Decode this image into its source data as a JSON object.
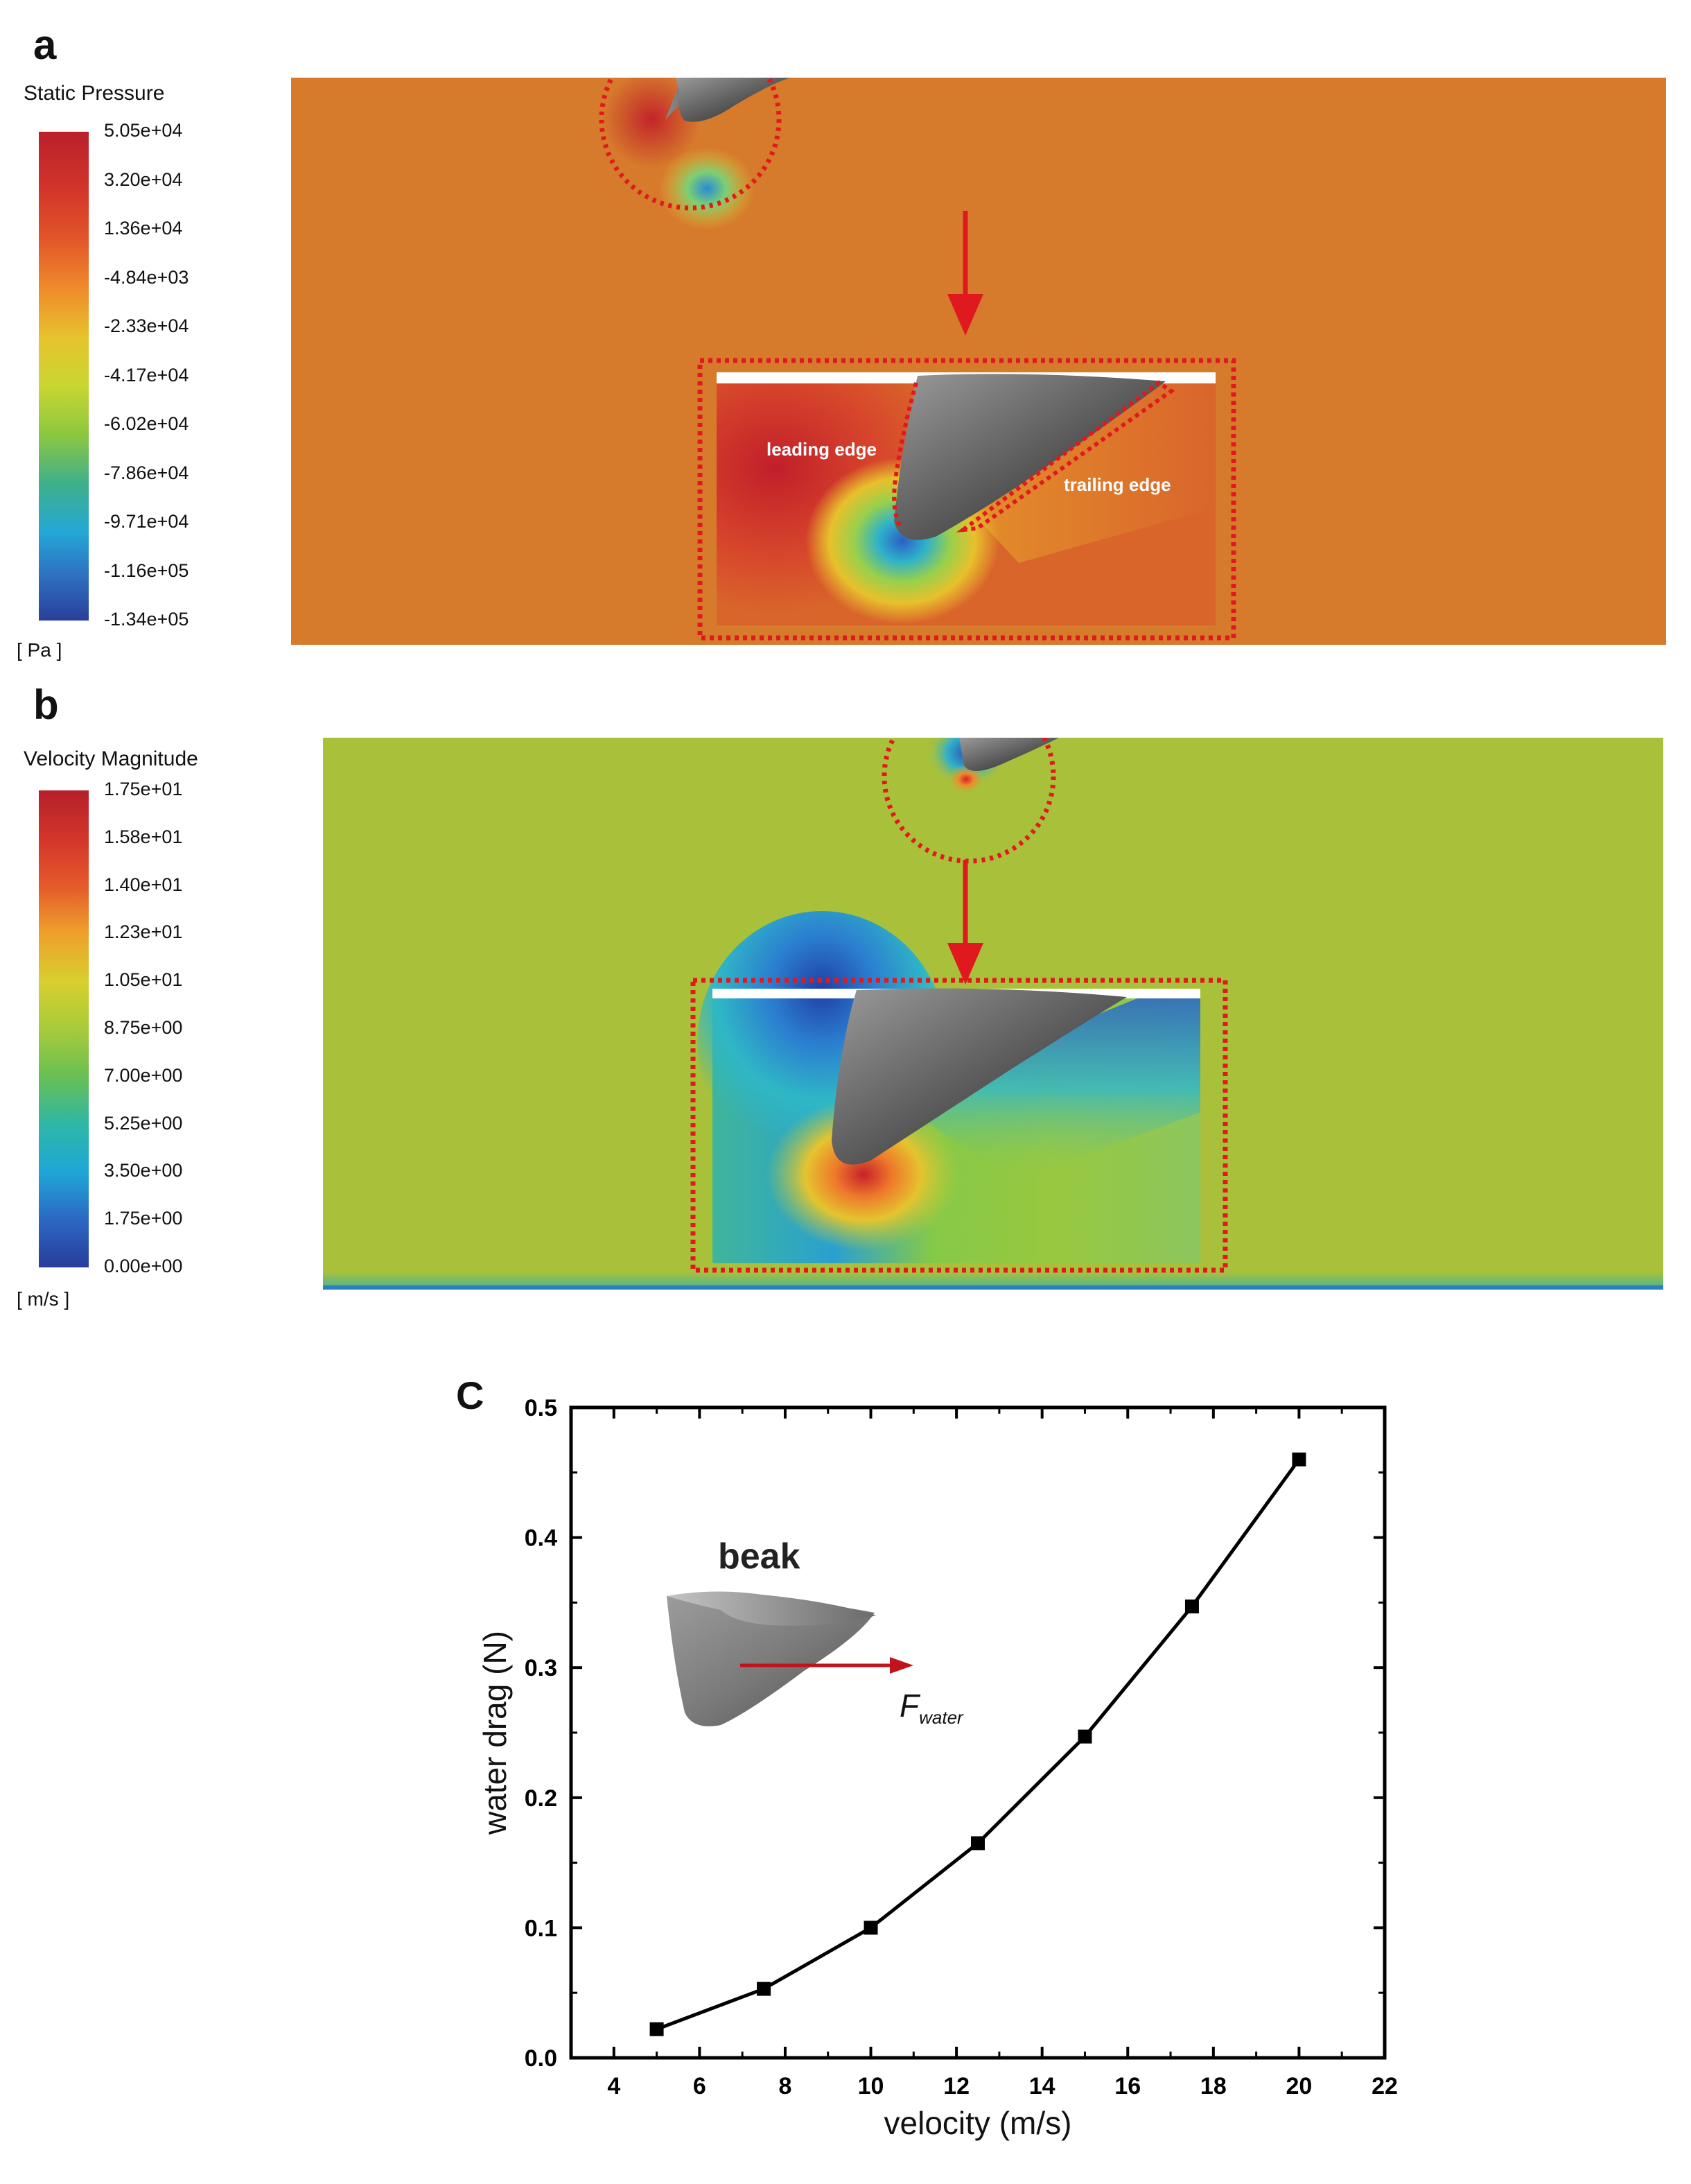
{
  "panel_a": {
    "label": "a",
    "colorbar_title": "Static Pressure",
    "colorbar_ticks": [
      "5.05e+04",
      "3.20e+04",
      "1.36e+04",
      "-4.84e+03",
      "-2.33e+04",
      "-4.17e+04",
      "-6.02e+04",
      "-7.86e+04",
      "-9.71e+04",
      "-1.16e+05",
      "-1.34e+05"
    ],
    "units": "[ Pa ]",
    "inset_labels": {
      "leading": "leading edge",
      "trailing": "trailing edge"
    },
    "field_color": "#d67a2c"
  },
  "panel_b": {
    "label": "b",
    "colorbar_title": "Velocity Magnitude",
    "colorbar_ticks": [
      "1.75e+01",
      "1.58e+01",
      "1.40e+01",
      "1.23e+01",
      "1.05e+01",
      "8.75e+00",
      "7.00e+00",
      "5.25e+00",
      "3.50e+00",
      "1.75e+00",
      "0.00e+00"
    ],
    "units": "[ m/s ]",
    "field_color": "#a9c13a"
  },
  "panel_c": {
    "label": "C",
    "inset_title": "beak",
    "force_label_main": "F",
    "force_label_sub": "water"
  },
  "chart_data": {
    "type": "line",
    "xlabel": "velocity (m/s)",
    "ylabel": "water drag (N)",
    "xlim": [
      3,
      22
    ],
    "ylim": [
      0,
      0.5
    ],
    "xticks": [
      4,
      6,
      8,
      10,
      12,
      14,
      16,
      18,
      20,
      22
    ],
    "yticks": [
      0.0,
      0.1,
      0.2,
      0.3,
      0.4,
      0.5
    ],
    "xtick_labels": [
      "4",
      "6",
      "8",
      "10",
      "12",
      "14",
      "16",
      "18",
      "20",
      "22"
    ],
    "ytick_labels": [
      "0.0",
      "0.1",
      "0.2",
      "0.3",
      "0.4",
      "0.5"
    ],
    "series": [
      {
        "x": [
          5,
          7.5,
          10,
          12.5,
          15,
          17.5,
          20
        ],
        "y": [
          0.022,
          0.053,
          0.1,
          0.165,
          0.247,
          0.347,
          0.46
        ]
      }
    ],
    "grid": false,
    "marker": "square",
    "line_color": "#000000"
  }
}
